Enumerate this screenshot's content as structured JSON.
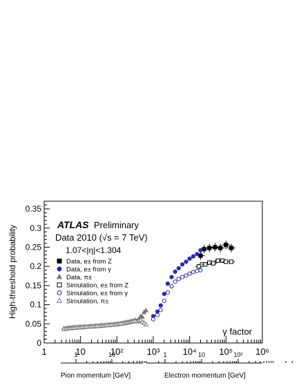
{
  "chart_data": {
    "type": "scatter",
    "ylabel": "High-threshold probability",
    "xlabel": "γ factor",
    "x_scale": "log",
    "xlim": [
      1,
      1000000
    ],
    "ylim": [
      0,
      0.37
    ],
    "y_ticks": [
      "0",
      "0.05",
      "0.1",
      "0.15",
      "0.2",
      "0.25",
      "0.3",
      "0.35"
    ],
    "x_ticks": [
      "1",
      "10",
      "10²",
      "10³",
      "10⁴",
      "10⁵",
      "10⁶"
    ],
    "annotations": {
      "atlas": "ATLAS",
      "preliminary": "Preliminary",
      "dataset": "Data 2010 (√s = 7 TeV)",
      "eta_range": "1.07<|η|<1.304"
    },
    "secondary_axes": [
      {
        "label": "Pion momentum [GeV]",
        "ticks": [
          "1",
          "10"
        ]
      },
      {
        "label": "Electron momentum [GeV]",
        "ticks": [
          "1",
          "10",
          "10²"
        ]
      }
    ],
    "series": [
      {
        "name": "Data, e± from Z",
        "marker": "filled-square",
        "color": "#000000",
        "x": [
          20000,
          25000,
          35000,
          50000,
          70000,
          100000,
          140000
        ],
        "y": [
          0.228,
          0.245,
          0.248,
          0.25,
          0.248,
          0.256,
          0.248
        ]
      },
      {
        "name": "Data, e± from γ",
        "marker": "filled-circle",
        "color": "#2a2fa0",
        "x": [
          1000,
          1300,
          1600,
          2000,
          2500,
          3200,
          4000,
          5000,
          6300,
          8000,
          10000,
          12600,
          16000,
          20000
        ],
        "y": [
          0.07,
          0.082,
          0.098,
          0.128,
          0.155,
          0.172,
          0.186,
          0.195,
          0.205,
          0.212,
          0.22,
          0.226,
          0.232,
          0.242
        ]
      },
      {
        "name": "Data, π±",
        "marker": "filled-triangle",
        "color": "#777777",
        "x": [
          3.5,
          4,
          4.5,
          5,
          5.6,
          6.3,
          7,
          8,
          9,
          10,
          11.2,
          12.6,
          14,
          16,
          18,
          20,
          22.5,
          25,
          28,
          32,
          36,
          40,
          45,
          50,
          56,
          63,
          70,
          80,
          90,
          100,
          112,
          126,
          140,
          160,
          180,
          200,
          225,
          250,
          280,
          320,
          360,
          400,
          450,
          500,
          560,
          630
        ],
        "y": [
          0.038,
          0.039,
          0.039,
          0.04,
          0.04,
          0.041,
          0.041,
          0.041,
          0.042,
          0.042,
          0.042,
          0.043,
          0.043,
          0.043,
          0.044,
          0.044,
          0.044,
          0.045,
          0.045,
          0.045,
          0.046,
          0.046,
          0.046,
          0.047,
          0.047,
          0.048,
          0.048,
          0.049,
          0.049,
          0.05,
          0.05,
          0.051,
          0.052,
          0.053,
          0.054,
          0.055,
          0.056,
          0.057,
          0.058,
          0.06,
          0.058,
          0.062,
          0.07,
          0.068,
          0.08,
          0.085
        ]
      },
      {
        "name": "Simulation, e± from Z",
        "marker": "open-square",
        "color": "#000000",
        "x": [
          18000,
          22000,
          27000,
          35000,
          45000,
          60000,
          80000,
          100000,
          140000
        ],
        "y": [
          0.2,
          0.205,
          0.205,
          0.21,
          0.208,
          0.215,
          0.215,
          0.212,
          0.212
        ]
      },
      {
        "name": "Simulation, e± from γ",
        "marker": "open-circle",
        "color": "#2a2fa0",
        "x": [
          1000,
          1300,
          1600,
          2000,
          2500,
          3200,
          4000,
          5000,
          6300,
          8000,
          10000,
          12600,
          16000,
          20000
        ],
        "y": [
          0.062,
          0.073,
          0.086,
          0.11,
          0.132,
          0.148,
          0.16,
          0.167,
          0.172,
          0.176,
          0.181,
          0.185,
          0.188,
          0.19
        ]
      },
      {
        "name": "Simulation, π±",
        "marker": "open-triangle",
        "color": "#777777",
        "x": [
          3.5,
          4,
          4.5,
          5,
          5.6,
          6.3,
          7,
          8,
          9,
          10,
          11.2,
          12.6,
          14,
          16,
          18,
          20,
          22.5,
          25,
          28,
          32,
          36,
          40,
          45,
          50,
          56,
          63,
          70,
          80,
          90,
          100,
          112,
          126,
          140,
          160,
          180,
          200,
          225,
          250,
          280,
          320,
          360,
          400,
          450,
          500,
          560,
          630
        ],
        "y": [
          0.036,
          0.037,
          0.037,
          0.038,
          0.038,
          0.039,
          0.039,
          0.04,
          0.04,
          0.04,
          0.041,
          0.041,
          0.042,
          0.042,
          0.042,
          0.043,
          0.043,
          0.043,
          0.044,
          0.044,
          0.044,
          0.045,
          0.045,
          0.046,
          0.046,
          0.046,
          0.047,
          0.047,
          0.048,
          0.048,
          0.049,
          0.05,
          0.05,
          0.051,
          0.052,
          0.053,
          0.054,
          0.055,
          0.056,
          0.057,
          0.056,
          0.058,
          0.06,
          0.055,
          0.052,
          0.048
        ]
      }
    ],
    "legend_position": "left"
  }
}
